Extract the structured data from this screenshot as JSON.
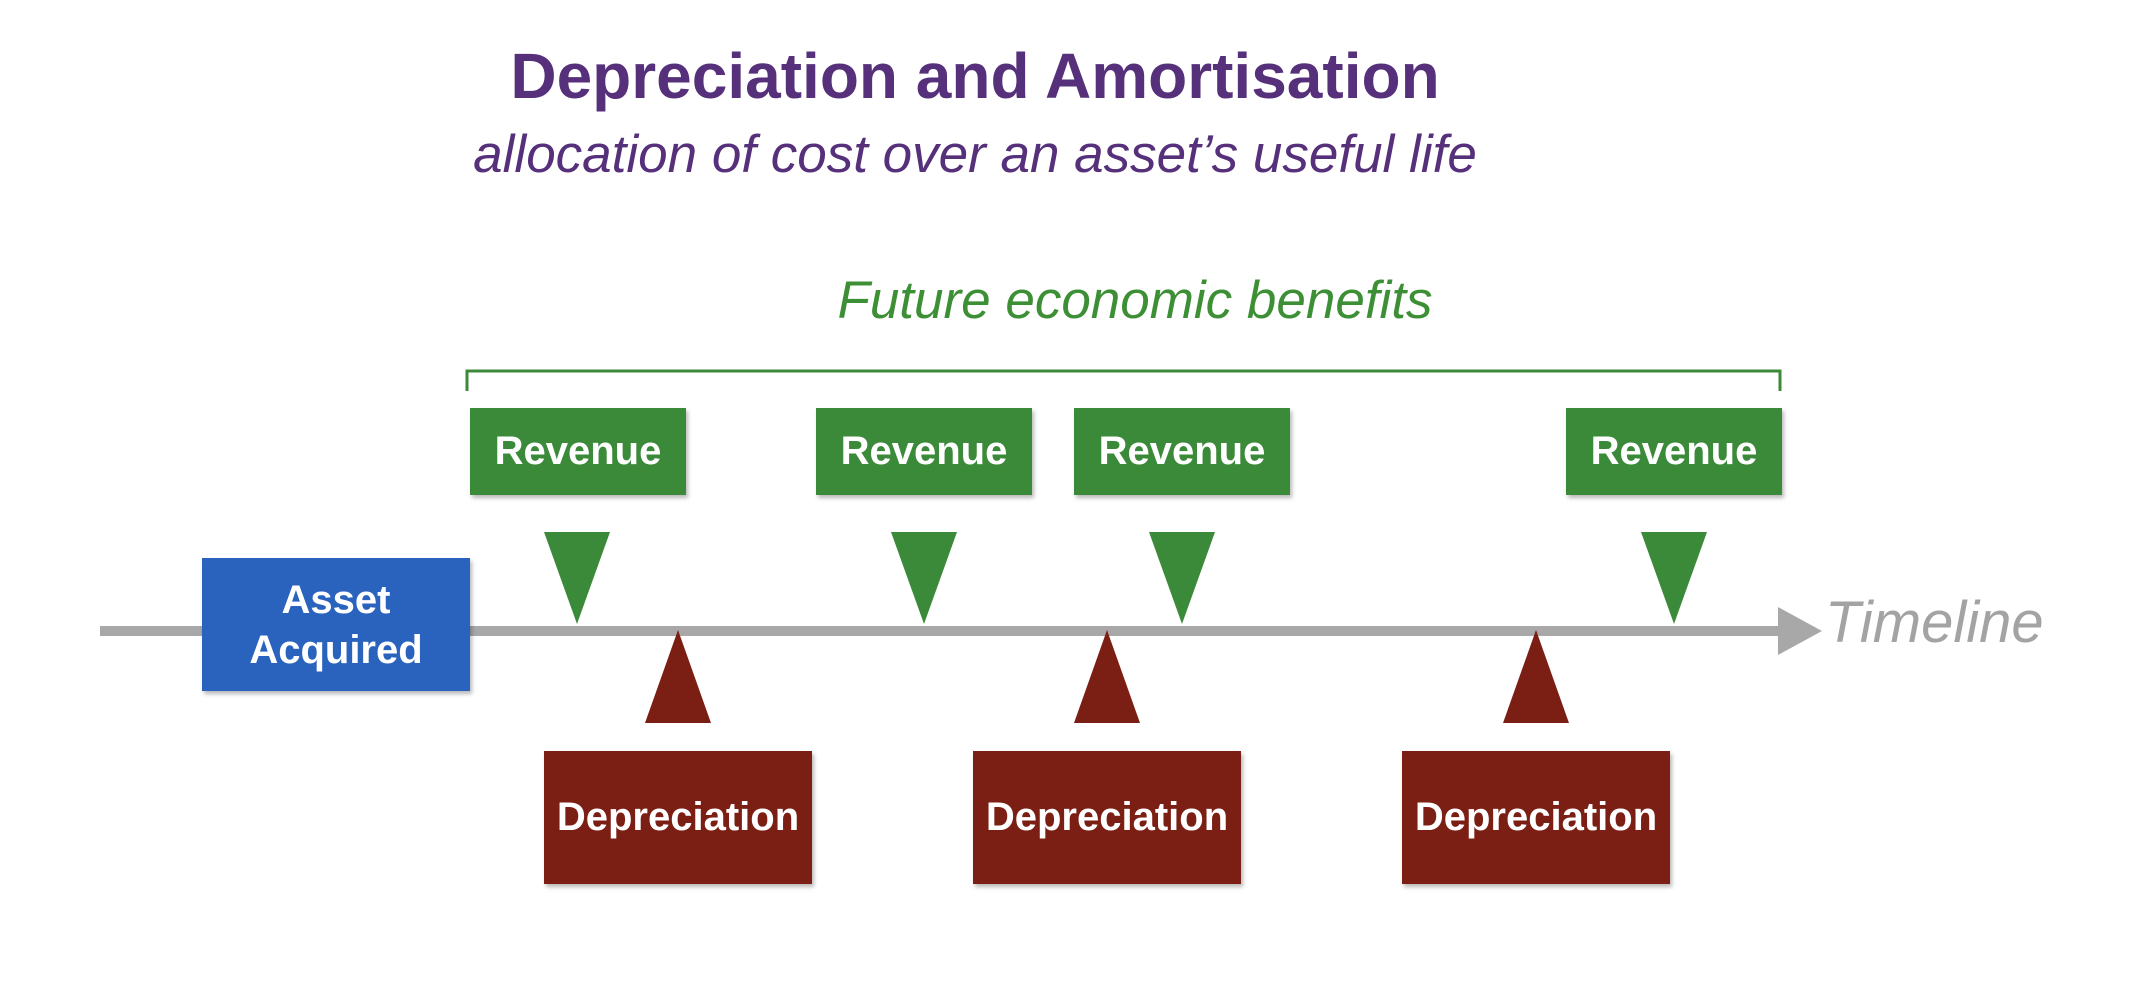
{
  "title": "Depreciation and Amortisation",
  "subtitle": "allocation of cost over an asset’s useful life",
  "benefits_label": "Future economic benefits",
  "timeline_label": "Timeline",
  "asset_box": {
    "line1": "Asset",
    "line2": "Acquired"
  },
  "revenue_boxes": [
    {
      "label": "Revenue"
    },
    {
      "label": "Revenue"
    },
    {
      "label": "Revenue"
    },
    {
      "label": "Revenue"
    }
  ],
  "depreciation_boxes": [
    {
      "label": "Depreciation"
    },
    {
      "label": "Depreciation"
    },
    {
      "label": "Depreciation"
    }
  ],
  "colors": {
    "title": "#56307a",
    "green": "#3b8a3a",
    "benefits_text": "#3d8f35",
    "red": "#7b1e14",
    "blue": "#2a63be",
    "timeline": "#a8a8a8",
    "timeline_text": "#a3a3a3"
  }
}
